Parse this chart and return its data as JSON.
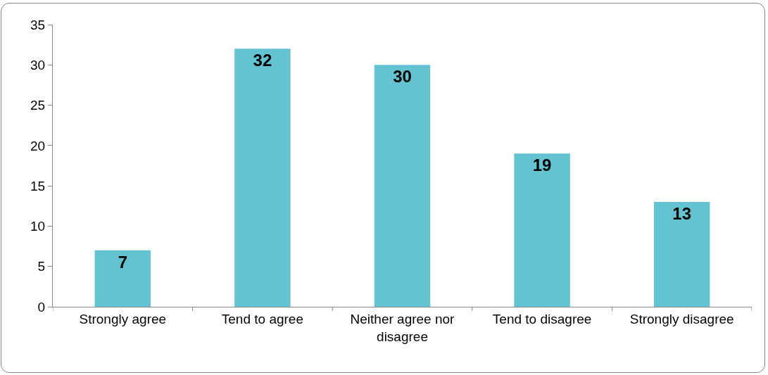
{
  "chart_data": {
    "type": "bar",
    "categories": [
      "Strongly agree",
      "Tend to agree",
      "Neither agree nor disagree",
      "Tend to disagree",
      "Strongly disagree"
    ],
    "values": [
      7,
      32,
      30,
      19,
      13
    ],
    "color": "#63c3d1",
    "data_labels": true,
    "ylim": [
      0,
      35
    ],
    "yticks": [
      0,
      5,
      10,
      15,
      20,
      25,
      30,
      35
    ],
    "grid": false
  }
}
